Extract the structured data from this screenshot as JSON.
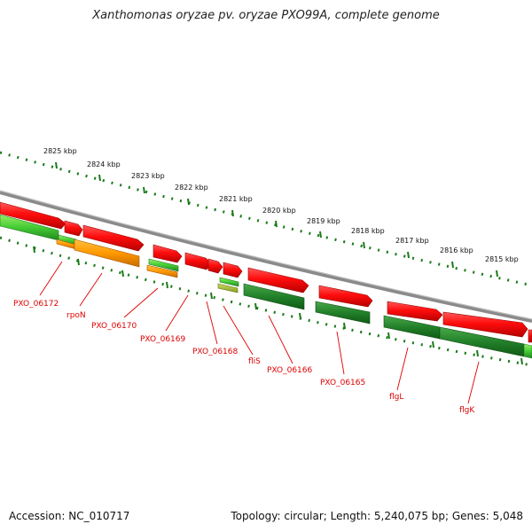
{
  "title": "Xanthomonas oryzae pv. oryzae PXO99A, complete genome",
  "footer": {
    "accession": "Accession: NC_010717",
    "topology": "Topology: circular; Length: 5,240,075 bp; Genes: 5,048"
  },
  "colors": {
    "reverse_strand_gene": "#ff1a1a",
    "forward_strand_gene": "#2a8a2a",
    "highlight_gene": "#ff9900",
    "light_green_gene": "#66dd44",
    "backbone": "#7a7a7a",
    "scale_dots": "#1a7a1a",
    "gene_label": "#dd0000"
  },
  "scale_labels": [
    "2825 kbp",
    "2824 kbp",
    "2823 kbp",
    "2822 kbp",
    "2821 kbp",
    "2820 kbp",
    "2819 kbp",
    "2818 kbp",
    "2817 kbp",
    "2816 kbp",
    "2815 kbp"
  ],
  "gene_labels": [
    "PXO_06172",
    "rpoN",
    "PXO_06170",
    "PXO_06169",
    "PXO_06168",
    "fliS",
    "PXO_06166",
    "PXO_06165",
    "flgL",
    "flgK"
  ]
}
